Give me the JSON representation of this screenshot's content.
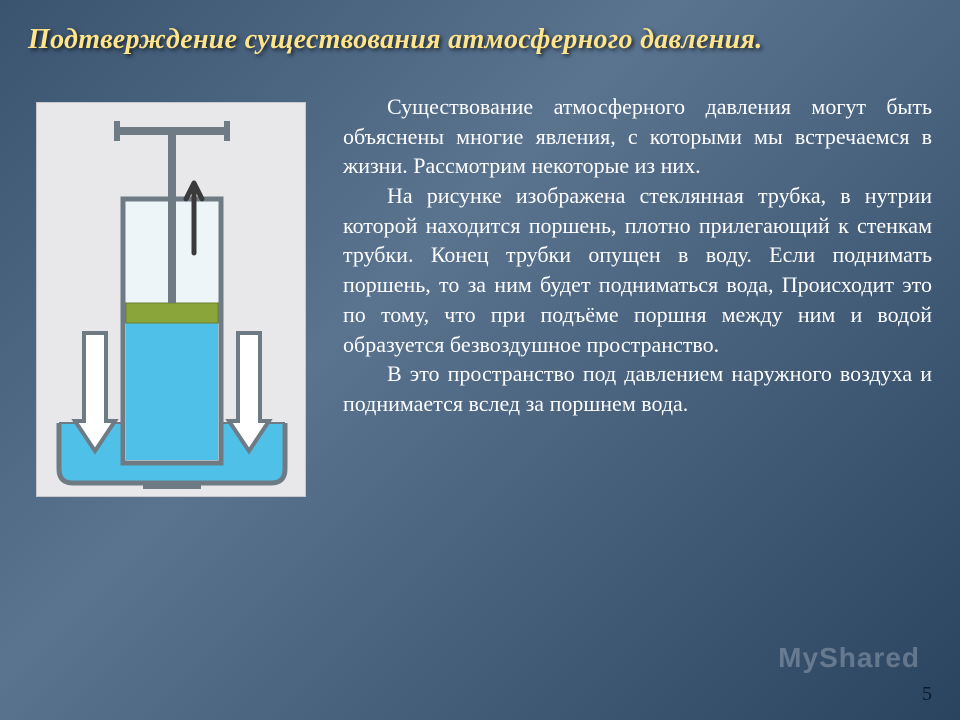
{
  "title": "Подтверждение существования атмосферного давления.",
  "paragraphs": {
    "p1": "Существование атмосферного давления могут быть объяснены многие явления, с которыми мы встречаемся в жизни. Рассмотрим некоторые из них.",
    "p2": "На рисунке изображена стеклянная трубка, в нутрии которой находится поршень, плотно прилегающий к стенкам трубки. Конец трубки опущен в воду. Если поднимать поршень, то за ним будет подниматься вода, Происходит это по тому, что при подъёме поршня между ним и водой образуется безвоздушное пространство.",
    "p3": "В это пространство под давлением наружного воздуха и поднимается вслед за поршнем вода."
  },
  "page_number": "5",
  "watermark": "MyShared",
  "diagram": {
    "background": "#e8e8ea",
    "bowl_fill": "#4fc0e8",
    "bowl_stroke": "#6e7b84",
    "tube_stroke": "#6e7b84",
    "tube_fill_top": "#eef5f8",
    "water_column_fill": "#4fc0e8",
    "piston_fill": "#8aa63a",
    "rod_fill": "#6e7b84",
    "handle_fill": "#6e7b84",
    "up_arrow_fill": "#3a3a3a",
    "down_arrow_stroke": "#6e7b84",
    "down_arrow_fill": "#ffffff"
  }
}
